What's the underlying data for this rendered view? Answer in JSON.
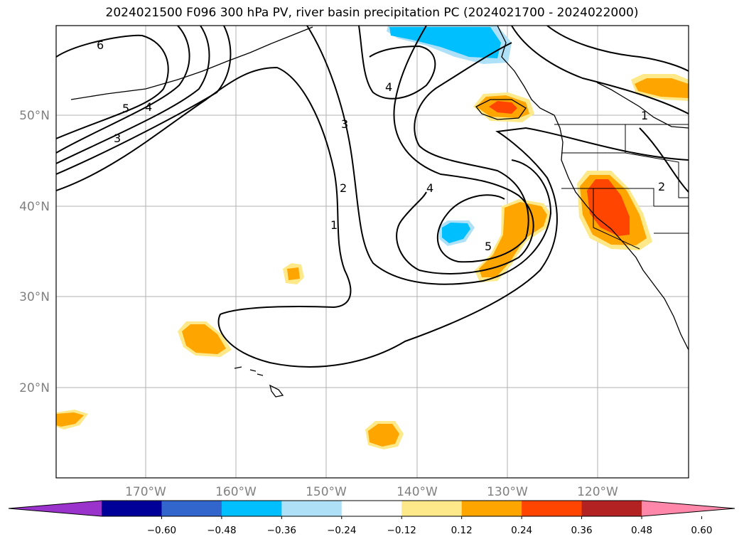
{
  "title": "2024021500 F096 300 hPa PV, river basin precipitation PC (2024021700 - 2024022000)",
  "map": {
    "latitude_labels": [
      "50°N",
      "40°N",
      "30°N",
      "20°N"
    ],
    "longitude_labels": [
      "170°W",
      "160°W",
      "150°W",
      "140°W",
      "130°W",
      "120°W"
    ],
    "contour_labels": [
      "6",
      "5",
      "4",
      "3",
      "4",
      "3",
      "2",
      "1",
      "4",
      "5",
      "1",
      "2"
    ]
  },
  "colorbar": {
    "colors": [
      "#9933cc",
      "#000099",
      "#3366cc",
      "#00bfff",
      "#aee0f8",
      "#ffffff",
      "#fde98a",
      "#ffa500",
      "#ff4500",
      "#b22222",
      "#ff88aa"
    ],
    "tick_labels": [
      "−0.60",
      "−0.48",
      "−0.36",
      "−0.24",
      "−0.12",
      "0.12",
      "0.24",
      "0.36",
      "0.48",
      "0.60"
    ]
  }
}
